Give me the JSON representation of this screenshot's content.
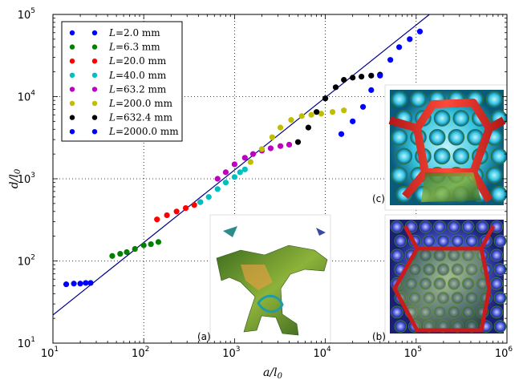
{
  "chart_data": {
    "type": "scatter",
    "scale": {
      "x": "log",
      "y": "log"
    },
    "xlabel": "a/l",
    "xlabel_sub": "0",
    "ylabel": "d/l",
    "ylabel_sub": "0",
    "xlim": [
      10,
      1000000
    ],
    "ylim": [
      10,
      100000
    ],
    "grid": "dotted",
    "x_ticks": [
      {
        "base": "10",
        "exp": "1"
      },
      {
        "base": "10",
        "exp": "2"
      },
      {
        "base": "10",
        "exp": "3"
      },
      {
        "base": "10",
        "exp": "4"
      },
      {
        "base": "10",
        "exp": "5"
      },
      {
        "base": "10",
        "exp": "6"
      }
    ],
    "y_ticks": [
      {
        "base": "10",
        "exp": "1"
      },
      {
        "base": "10",
        "exp": "2"
      },
      {
        "base": "10",
        "exp": "3"
      },
      {
        "base": "10",
        "exp": "4"
      },
      {
        "base": "10",
        "exp": "5"
      }
    ],
    "legend_position": "top-left",
    "series": [
      {
        "name": "L=2.0 mm",
        "label_var": "L",
        "label_val": "=2.0 mm",
        "color": "#0000ff",
        "x": [
          14,
          17,
          20,
          23,
          26
        ],
        "y": [
          52,
          53,
          53,
          54,
          54
        ]
      },
      {
        "name": "L=6.3 mm",
        "label_var": "L",
        "label_val": "=6.3 mm",
        "color": "#008000",
        "x": [
          45,
          55,
          65,
          80,
          100,
          120,
          145
        ],
        "y": [
          115,
          122,
          128,
          140,
          155,
          160,
          170
        ]
      },
      {
        "name": "L=20.0 mm",
        "label_var": "L",
        "label_val": "=20.0 mm",
        "color": "#ff0000",
        "x": [
          140,
          180,
          230,
          290,
          360,
          420
        ],
        "y": [
          320,
          360,
          400,
          440,
          480,
          520
        ]
      },
      {
        "name": "L=40.0 mm",
        "label_var": "L",
        "label_val": "=40.0 mm",
        "color": "#00bfbf",
        "x": [
          420,
          520,
          650,
          800,
          1000,
          1150,
          1300
        ],
        "y": [
          520,
          600,
          750,
          900,
          1050,
          1200,
          1300
        ]
      },
      {
        "name": "L=63.2 mm",
        "label_var": "L",
        "label_val": "=63.2 mm",
        "color": "#bf00bf",
        "x": [
          650,
          800,
          1000,
          1300,
          1600,
          2000,
          2500,
          3200,
          4000
        ],
        "y": [
          1000,
          1200,
          1500,
          1800,
          2000,
          2200,
          2350,
          2500,
          2600
        ]
      },
      {
        "name": "L=200.0 mm",
        "label_var": "L",
        "label_val": "=200.0 mm",
        "color": "#bfbf00",
        "x": [
          1500,
          2000,
          2600,
          3200,
          4200,
          5500,
          7000,
          9000,
          12000,
          16000
        ],
        "y": [
          1600,
          2300,
          3200,
          4200,
          5200,
          5800,
          6000,
          6200,
          6500,
          6800
        ]
      },
      {
        "name": "L=632.4 mm",
        "label_var": "L",
        "label_val": "=632.4 mm",
        "color": "#000000",
        "x": [
          5000,
          6500,
          8000,
          10000,
          13000,
          16000,
          20000,
          25000,
          32000,
          40000
        ],
        "y": [
          2800,
          4200,
          6500,
          9500,
          13000,
          16000,
          17000,
          17500,
          18000,
          18500
        ]
      },
      {
        "name": "L=2000.0 mm",
        "label_var": "L",
        "label_val": "=2000.0 mm",
        "color": "#0000ff",
        "x": [
          15000,
          20000,
          26000,
          32000,
          40000,
          52000,
          65000,
          85000,
          110000
        ],
        "y": [
          3500,
          5000,
          7500,
          12000,
          18000,
          28000,
          40000,
          50000,
          62000
        ]
      }
    ],
    "fit_line": {
      "color": "#00008b",
      "x": [
        10,
        140000
      ],
      "y": [
        22,
        100000
      ]
    },
    "insets": [
      {
        "label": "(a)"
      },
      {
        "label": "(b)"
      },
      {
        "label": "(c)"
      }
    ]
  }
}
